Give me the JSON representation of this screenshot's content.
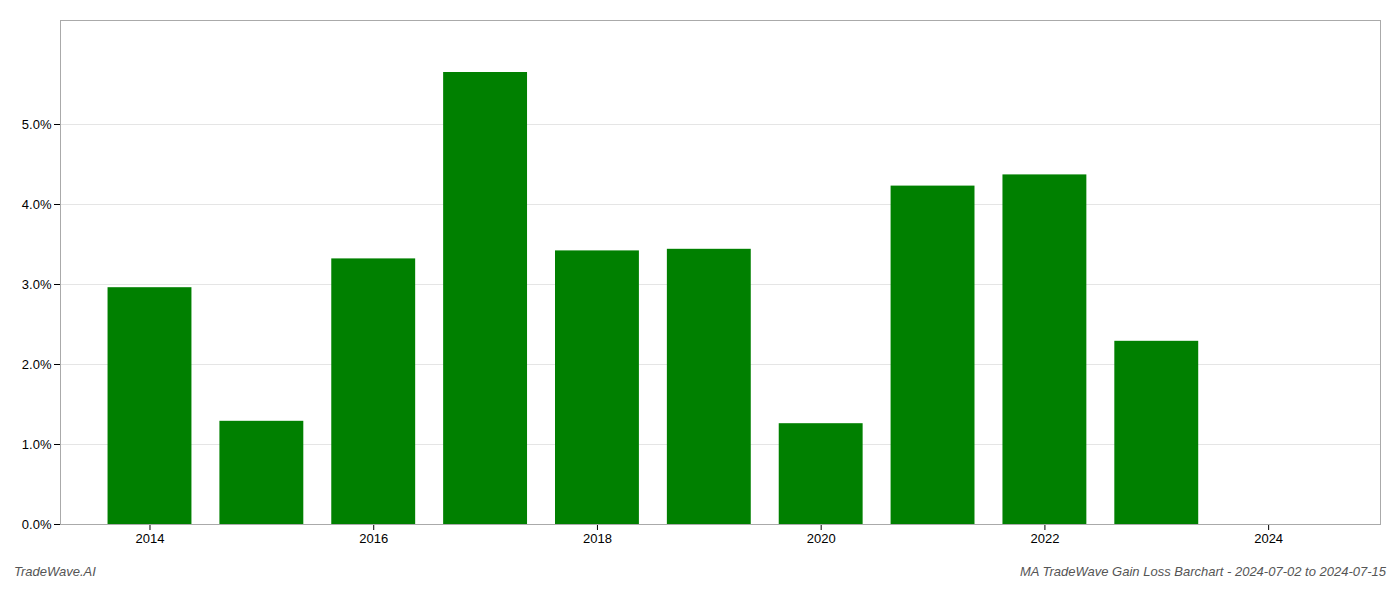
{
  "chart_data": {
    "type": "bar",
    "x": [
      2014,
      2015,
      2016,
      2017,
      2018,
      2019,
      2020,
      2021,
      2022,
      2023
    ],
    "values": [
      0.0296,
      0.0129,
      0.0332,
      0.0565,
      0.0342,
      0.0344,
      0.0126,
      0.0423,
      0.0437,
      0.0229
    ],
    "color": "#008000",
    "xlim": [
      2013.2,
      2025.0
    ],
    "xticks": [
      2014,
      2016,
      2018,
      2020,
      2022,
      2024
    ],
    "ylim": [
      0,
      0.063
    ],
    "yticks": [
      {
        "value": 0.0,
        "label": "0.0%"
      },
      {
        "value": 0.01,
        "label": "1.0%"
      },
      {
        "value": 0.02,
        "label": "2.0%"
      },
      {
        "value": 0.03,
        "label": "3.0%"
      },
      {
        "value": 0.04,
        "label": "4.0%"
      },
      {
        "value": 0.05,
        "label": "5.0%"
      }
    ],
    "grid": true,
    "annotations": [
      "TradeWave.AI",
      "MA TradeWave Gain Loss Barchart - 2024-07-02 to 2024-07-15"
    ]
  }
}
